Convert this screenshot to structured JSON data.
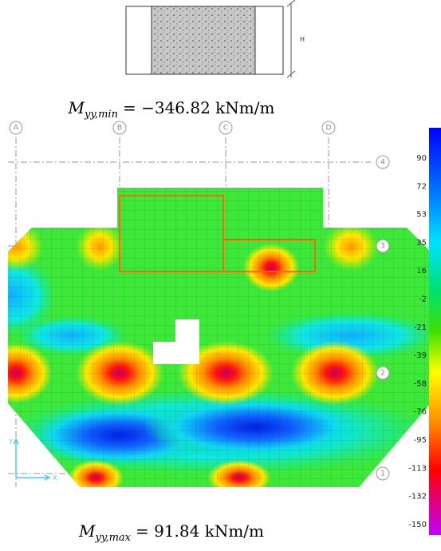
{
  "section_label": "H",
  "formula_min": {
    "symbol": "M",
    "subscript": "yy,min",
    "rest": "= −346.82 kNm/m"
  },
  "formula_max": {
    "symbol": "M",
    "subscript": "yy,max",
    "rest": "= 91.84 kNm/m"
  },
  "grid_columns": [
    "A",
    "B",
    "C",
    "D"
  ],
  "grid_rows": [
    "4",
    "3",
    "2",
    "1"
  ],
  "axis_labels": {
    "y": "Y",
    "x": "X"
  },
  "legend_ticks": [
    90,
    72,
    53,
    35,
    16,
    -2,
    -21,
    -39,
    -58,
    -76,
    -95,
    -113,
    -132,
    -150
  ]
}
